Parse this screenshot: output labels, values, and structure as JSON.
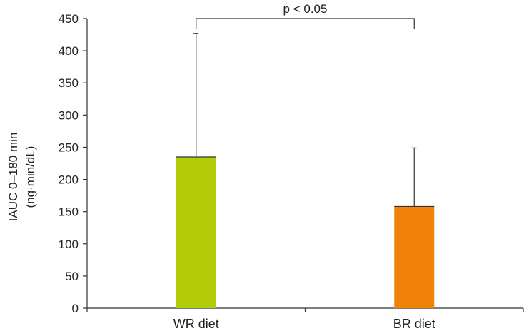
{
  "chart_data": {
    "type": "bar",
    "categories": [
      "WR diet",
      "BR diet"
    ],
    "values": [
      235,
      158
    ],
    "errors_upper": [
      427,
      249
    ],
    "colors": [
      "#b2cc0a",
      "#f08109"
    ],
    "ylabel_line1": "IAUC 0–180 min",
    "ylabel_line2": "(ng·min/dL)",
    "xlabel": "",
    "title": "",
    "ylim": [
      0,
      450
    ],
    "yticks": [
      0,
      50,
      100,
      150,
      200,
      250,
      300,
      350,
      400,
      450
    ],
    "ytick_labels": [
      "0",
      "50",
      "100",
      "150",
      "200",
      "250",
      "300",
      "350",
      "400",
      "450"
    ],
    "grid": false,
    "legend": "none",
    "significance": {
      "label": "p < 0.05",
      "between": [
        "WR diet",
        "BR diet"
      ],
      "at_value": 450
    }
  }
}
